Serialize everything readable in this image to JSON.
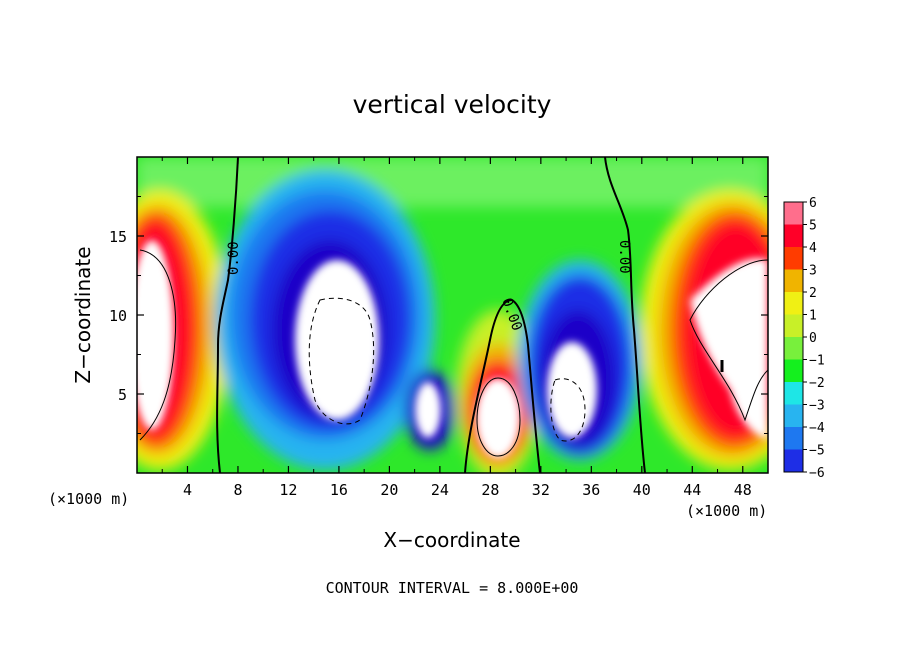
{
  "chart_data": {
    "type": "heatmap",
    "title": "vertical velocity",
    "xlabel": "X−coordinate",
    "ylabel": "Z−coordinate",
    "x_unit_left": "(×1000 m)",
    "x_unit_right": "(×1000 m)",
    "xlim": [
      0,
      50
    ],
    "ylim": [
      0,
      20
    ],
    "x_ticks": [
      4,
      8,
      12,
      16,
      20,
      24,
      28,
      32,
      36,
      40,
      44,
      48
    ],
    "y_ticks": [
      5,
      10,
      15
    ],
    "colorbar": {
      "levels": [
        -6,
        -5,
        -4,
        -3,
        -2,
        -1,
        0,
        1,
        2,
        3,
        4,
        5,
        6
      ],
      "labels": [
        "−6",
        "−5",
        "−4",
        "−3",
        "−2",
        "−1",
        "0",
        "1",
        "2",
        "3",
        "4",
        "5",
        "6"
      ],
      "colors": [
        "#7a00b0",
        "#1a00c8",
        "#1e2ee6",
        "#1e78f0",
        "#28b4f0",
        "#1ee6e6",
        "#14f01e",
        "#78f03c",
        "#c8f028",
        "#f0f014",
        "#f0b400",
        "#ff3c00",
        "#ff0028",
        "#ff6e8c"
      ]
    },
    "zero_contour_labels": [
      "0.00",
      "0.00",
      "0.00"
    ],
    "annotation": "CONTOUR INTERVAL = 8.000E+00"
  }
}
